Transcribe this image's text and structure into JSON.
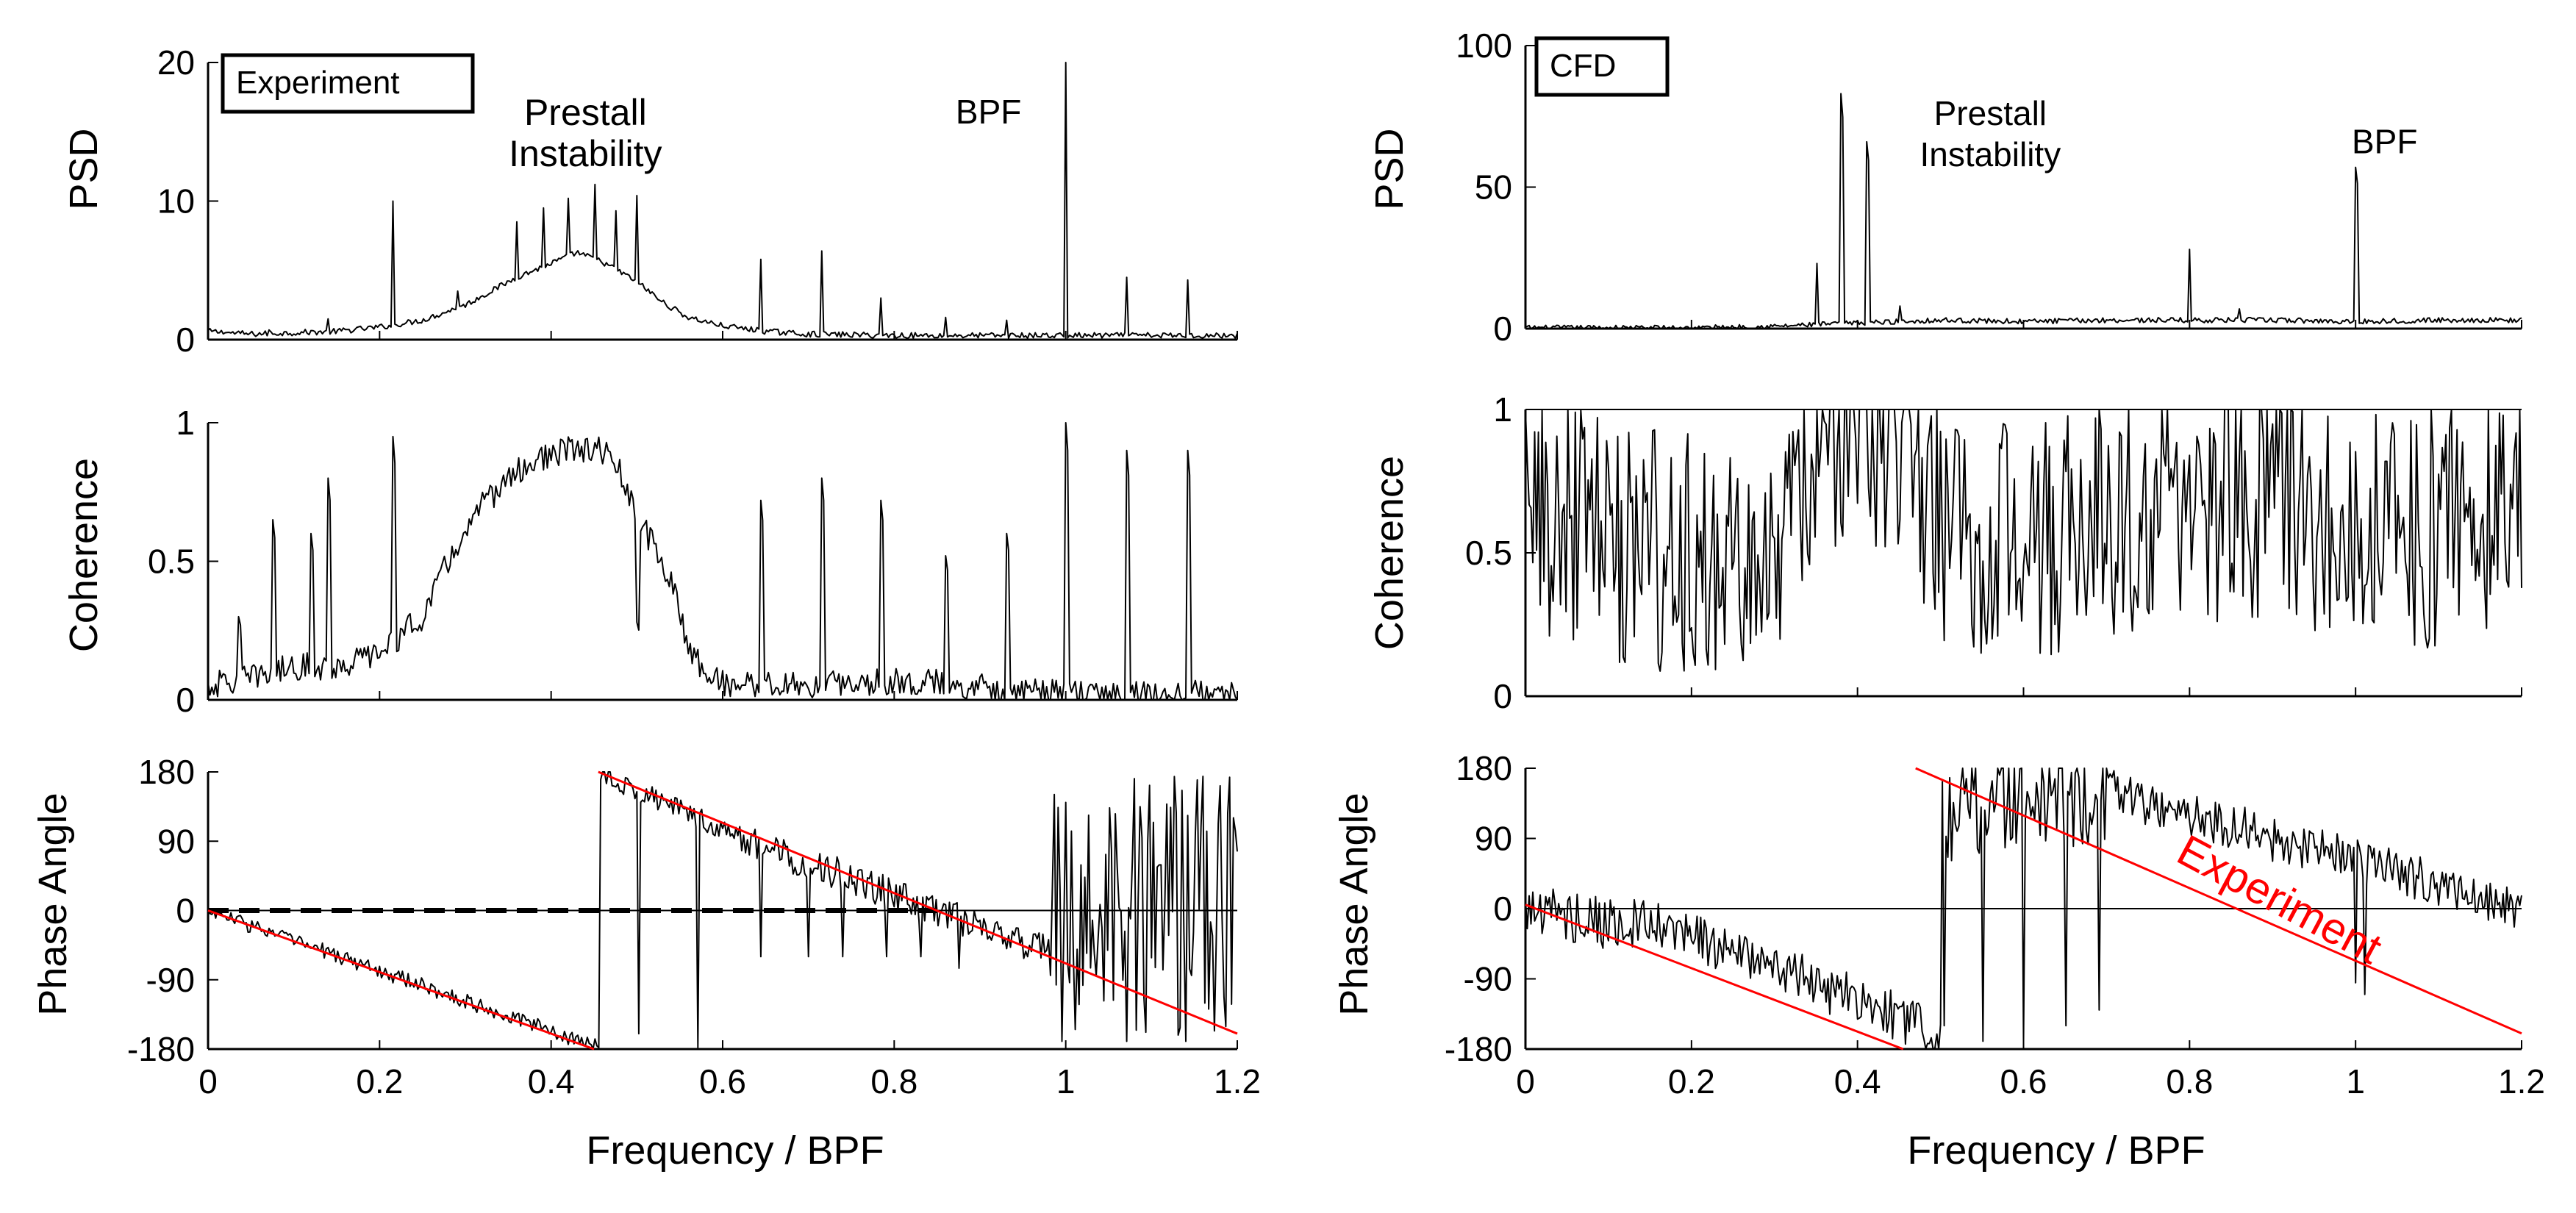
{
  "colors": {
    "trace": "#000000",
    "fit": "#ff0000",
    "background": "#ffffff"
  },
  "chart_data": [
    {
      "id": "experiment",
      "type": "line",
      "box_label": "Experiment",
      "xlabel": "Frequency / BPF",
      "xlim": [
        0,
        1.2
      ],
      "xticks": [
        "0",
        "0.2",
        "0.4",
        "0.6",
        "0.8",
        "1",
        "1.2"
      ],
      "subplots": [
        {
          "kind": "psd",
          "ylabel": "PSD",
          "ylim": [
            0,
            20
          ],
          "yticks": [
            "0",
            "10",
            "20"
          ],
          "annotations": [
            {
              "key": "prestall",
              "lines": [
                "Prestall",
                "Instability"
              ],
              "x": 0.44,
              "y": 15.5,
              "bold": true
            },
            {
              "key": "bpf",
              "lines": [
                "BPF"
              ],
              "x": 0.91,
              "y": 15.6,
              "bold": false
            }
          ],
          "baseline": [
            [
              0,
              0.6
            ],
            [
              0.05,
              0.4
            ],
            [
              0.1,
              0.5
            ],
            [
              0.15,
              0.6
            ],
            [
              0.2,
              0.9
            ],
            [
              0.25,
              1.4
            ],
            [
              0.3,
              2.5
            ],
            [
              0.33,
              3.5
            ],
            [
              0.36,
              4.5
            ],
            [
              0.4,
              5.5
            ],
            [
              0.43,
              6.3
            ],
            [
              0.46,
              5.6
            ],
            [
              0.5,
              4.2
            ],
            [
              0.53,
              2.7
            ],
            [
              0.56,
              1.6
            ],
            [
              0.6,
              1.0
            ],
            [
              0.65,
              0.6
            ],
            [
              0.7,
              0.4
            ],
            [
              0.8,
              0.3
            ],
            [
              0.9,
              0.3
            ],
            [
              1.0,
              0.3
            ],
            [
              1.1,
              0.3
            ],
            [
              1.2,
              0.3
            ]
          ],
          "noise": 0.35,
          "peaks": [
            [
              0.02,
              0.5
            ],
            [
              0.07,
              0.7
            ],
            [
              0.14,
              1.5
            ],
            [
              0.215,
              10
            ],
            [
              0.29,
              3.5
            ],
            [
              0.36,
              8.5
            ],
            [
              0.39,
              9.5
            ],
            [
              0.42,
              10.2
            ],
            [
              0.45,
              11.2
            ],
            [
              0.475,
              9.3
            ],
            [
              0.5,
              10.4
            ],
            [
              0.645,
              5.8
            ],
            [
              0.715,
              6.4
            ],
            [
              0.785,
              3
            ],
            [
              0.86,
              1.6
            ],
            [
              0.93,
              1.4
            ],
            [
              1.0,
              20
            ],
            [
              1.072,
              4.5
            ],
            [
              1.143,
              4.3
            ]
          ],
          "hlines": []
        },
        {
          "kind": "coherence",
          "ylabel": "Coherence",
          "ylim": [
            0,
            1
          ],
          "yticks": [
            "0",
            "0.5",
            "1"
          ],
          "annotations": [],
          "baseline": [
            [
              0,
              0.05
            ],
            [
              0.05,
              0.08
            ],
            [
              0.1,
              0.12
            ],
            [
              0.15,
              0.12
            ],
            [
              0.2,
              0.17
            ],
            [
              0.25,
              0.3
            ],
            [
              0.28,
              0.5
            ],
            [
              0.32,
              0.7
            ],
            [
              0.35,
              0.8
            ],
            [
              0.38,
              0.86
            ],
            [
              0.42,
              0.9
            ],
            [
              0.46,
              0.9
            ],
            [
              0.48,
              0.82
            ],
            [
              0.5,
              0.65
            ],
            [
              0.52,
              0.56
            ],
            [
              0.54,
              0.42
            ],
            [
              0.56,
              0.2
            ],
            [
              0.58,
              0.1
            ],
            [
              0.6,
              0.06
            ],
            [
              0.7,
              0.05
            ],
            [
              0.8,
              0.07
            ],
            [
              0.9,
              0.05
            ],
            [
              1.0,
              0.02
            ],
            [
              1.1,
              0.02
            ],
            [
              1.2,
              0.02
            ]
          ],
          "noise": 0.05,
          "peaks": [
            [
              0.035,
              0.3
            ],
            [
              0.075,
              0.65
            ],
            [
              0.12,
              0.6
            ],
            [
              0.14,
              0.8
            ],
            [
              0.215,
              0.95
            ],
            [
              0.5,
              0.28
            ],
            [
              0.645,
              0.72
            ],
            [
              0.715,
              0.8
            ],
            [
              0.785,
              0.72
            ],
            [
              0.86,
              0.52
            ],
            [
              0.93,
              0.6
            ],
            [
              1.0,
              1.0
            ],
            [
              1.072,
              0.9
            ],
            [
              1.143,
              0.9
            ]
          ],
          "hlines": []
        },
        {
          "kind": "phase",
          "ylabel": "Phase Angle",
          "ylim": [
            -180,
            180
          ],
          "yticks": [
            "-180",
            "-90",
            "0",
            "90",
            "180"
          ],
          "annotations": [],
          "segments": [
            {
              "from": 0,
              "to": 0.455,
              "start": 0,
              "end": -178,
              "noise": 10
            },
            {
              "from": 0.457,
              "to": 0.62,
              "start": 178,
              "end": 95,
              "noise": 14
            },
            {
              "from": 0.62,
              "to": 0.98,
              "start": 95,
              "end": -55,
              "noise": 22
            },
            {
              "from": 0.98,
              "to": 1.2,
              "start": -40,
              "end": -40,
              "noise": 70,
              "wild": true
            }
          ],
          "dips": [
            [
              0.455,
              -178
            ],
            [
              0.502,
              -160
            ],
            [
              0.57,
              -178
            ],
            [
              0.645,
              -60
            ],
            [
              0.7,
              -60
            ],
            [
              0.74,
              -60
            ],
            [
              0.79,
              -60
            ],
            [
              0.83,
              -60
            ],
            [
              0.875,
              -75
            ],
            [
              0.995,
              -170
            ],
            [
              1.07,
              -170
            ],
            [
              1.14,
              -170
            ]
          ],
          "zero_line": true,
          "dashed_zero": {
            "from": 0,
            "to": 0.85
          },
          "fit_lines": [
            {
              "x1": 0,
              "y1": 0,
              "x2": 0.45,
              "y2": -180
            },
            {
              "x1": 0.455,
              "y1": 180,
              "x2": 1.2,
              "y2": -160
            }
          ]
        }
      ]
    },
    {
      "id": "cfd",
      "type": "line",
      "box_label": "CFD",
      "xlabel": "Frequency / BPF",
      "xlim": [
        0,
        1.2
      ],
      "xticks": [
        "0",
        "0.2",
        "0.4",
        "0.6",
        "0.8",
        "1",
        "1.2"
      ],
      "subplots": [
        {
          "kind": "psd",
          "ylabel": "PSD",
          "ylim": [
            0,
            100
          ],
          "yticks": [
            "0",
            "50",
            "100"
          ],
          "annotations": [
            {
              "key": "prestall",
              "lines": [
                "Prestall",
                "Instability"
              ],
              "x": 0.56,
              "y": 72,
              "bold": false
            },
            {
              "key": "bpf",
              "lines": [
                "BPF"
              ],
              "x": 1.035,
              "y": 62,
              "bold": false
            }
          ],
          "baseline": [
            [
              0,
              0.3
            ],
            [
              0.2,
              0.3
            ],
            [
              0.3,
              0.8
            ],
            [
              0.4,
              2
            ],
            [
              0.5,
              3
            ],
            [
              0.6,
              2.5
            ],
            [
              0.7,
              3
            ],
            [
              0.8,
              3
            ],
            [
              0.9,
              3
            ],
            [
              1.0,
              2.5
            ],
            [
              1.1,
              3
            ],
            [
              1.2,
              3
            ]
          ],
          "noise": 1.5,
          "peaks": [
            [
              0.35,
              23
            ],
            [
              0.38,
              83
            ],
            [
              0.41,
              66
            ],
            [
              0.45,
              8
            ],
            [
              0.8,
              28
            ],
            [
              0.86,
              7
            ],
            [
              1.0,
              57
            ]
          ],
          "hlines": []
        },
        {
          "kind": "coherence",
          "ylabel": "Coherence",
          "ylim": [
            0,
            1
          ],
          "yticks": [
            "0",
            "0.5",
            "1"
          ],
          "annotations": [],
          "baseline": [
            [
              0,
              0.6
            ],
            [
              0.1,
              0.55
            ],
            [
              0.2,
              0.5
            ],
            [
              0.3,
              0.55
            ],
            [
              0.33,
              0.7
            ],
            [
              0.36,
              0.93
            ],
            [
              0.42,
              0.95
            ],
            [
              0.45,
              0.85
            ],
            [
              0.5,
              0.6
            ],
            [
              0.6,
              0.55
            ],
            [
              0.7,
              0.6
            ],
            [
              0.8,
              0.7
            ],
            [
              0.9,
              0.65
            ],
            [
              1.0,
              0.6
            ],
            [
              1.1,
              0.6
            ],
            [
              1.2,
              0.7
            ]
          ],
          "noise": 0.27,
          "peaks": [],
          "hlines": [
            1
          ]
        },
        {
          "kind": "phase",
          "ylabel": "Phase Angle",
          "ylim": [
            -180,
            180
          ],
          "yticks": [
            "-180",
            "-90",
            "0",
            "90",
            "180"
          ],
          "annotations": [
            {
              "key": "experiment",
              "lines": [
                "Experiment"
              ],
              "x": 0.9,
              "y": -5,
              "rotate": true,
              "red": true
            }
          ],
          "segments": [
            {
              "from": 0,
              "to": 0.2,
              "start": 0,
              "end": -35,
              "noise": 35
            },
            {
              "from": 0.2,
              "to": 0.5,
              "start": -35,
              "end": -160,
              "noise": 32
            },
            {
              "from": 0.5,
              "to": 0.7,
              "start": 130,
              "end": 150,
              "noise": 70
            },
            {
              "from": 0.7,
              "to": 1.2,
              "start": 150,
              "end": 0,
              "noise": 30
            }
          ],
          "dips": [
            [
              0.505,
              -150
            ],
            [
              0.55,
              -170
            ],
            [
              0.6,
              -170
            ],
            [
              0.65,
              -150
            ],
            [
              0.69,
              -130
            ],
            [
              1.0,
              -95
            ],
            [
              1.01,
              -110
            ]
          ],
          "zero_line": true,
          "dashed_zero": null,
          "fit_lines": [
            {
              "x1": 0,
              "y1": 5,
              "x2": 0.455,
              "y2": -180
            },
            {
              "x1": 0.47,
              "y1": 180,
              "x2": 1.2,
              "y2": -160
            }
          ]
        }
      ]
    }
  ]
}
